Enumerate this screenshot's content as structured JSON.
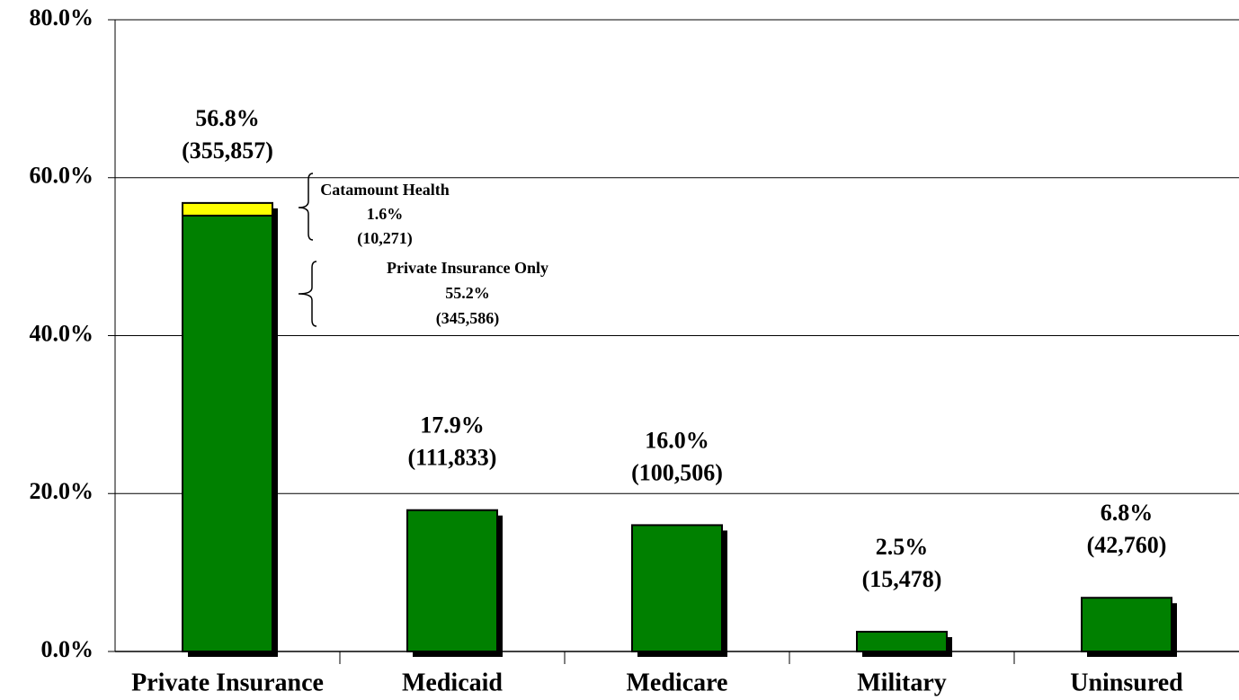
{
  "chart_data": {
    "type": "stacked_bar",
    "categories": [
      "Private Insurance",
      "Medicaid",
      "Medicare",
      "Military",
      "Uninsured"
    ],
    "series": [
      {
        "color": "#008000",
        "values": [
          55.2,
          17.9,
          16.0,
          2.5,
          6.8
        ]
      },
      {
        "color": "#ffff00",
        "values": [
          1.6,
          null,
          null,
          null,
          null
        ]
      }
    ],
    "bar_labels": [
      {
        "percent": "56.8%",
        "count": "(355,857)"
      },
      {
        "percent": "17.9%",
        "count": "(111,833)"
      },
      {
        "percent": "16.0%",
        "count": "(100,506)"
      },
      {
        "percent": "2.5%",
        "count": "(15,478)"
      },
      {
        "percent": "6.8%",
        "count": "(42,760)"
      }
    ],
    "annotations": [
      {
        "title": "Catamount Health",
        "percent": "1.6%",
        "count": "(10,271)"
      },
      {
        "title": "Private Insurance Only",
        "percent": "55.2%",
        "count": "(345,586)"
      }
    ],
    "ylim": [
      0,
      80
    ],
    "yticks": [
      {
        "value": 0,
        "label": "0.0%"
      },
      {
        "value": 20,
        "label": "20.0%"
      },
      {
        "value": 40,
        "label": "40.0%"
      },
      {
        "value": 60,
        "label": "60.0%"
      },
      {
        "value": 80,
        "label": "80.0%"
      }
    ],
    "grid": true
  }
}
